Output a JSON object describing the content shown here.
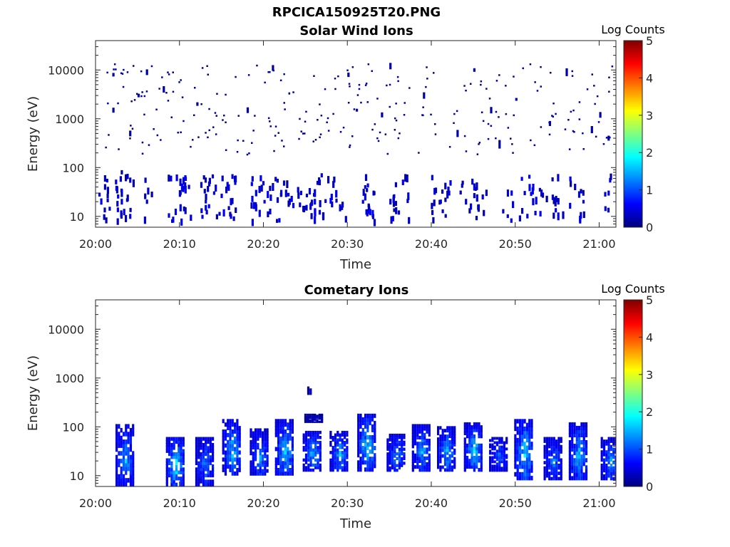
{
  "figure_title": "RPCICA150925T20.PNG",
  "colormap_stops": [
    "#00007f",
    "#0000ff",
    "#0080ff",
    "#00ffff",
    "#80ff80",
    "#ffff00",
    "#ff8000",
    "#ff0000",
    "#7f0000"
  ],
  "chart_data": [
    {
      "type": "heatmap",
      "title": "Solar Wind Ions",
      "xlabel": "Time",
      "ylabel": "Energy (eV)",
      "xlim": [
        "20:00",
        "21:02"
      ],
      "ylim": [
        6,
        40000
      ],
      "y_scale": "log",
      "x_ticks": [
        "20:00",
        "20:10",
        "20:20",
        "20:30",
        "20:40",
        "20:50",
        "21:00"
      ],
      "y_ticks": [
        "10",
        "100",
        "1000",
        "10000"
      ],
      "colorbar": {
        "label": "Log Counts",
        "range": [
          0,
          5
        ],
        "ticks": [
          "0",
          "1",
          "2",
          "3",
          "4",
          "5"
        ]
      },
      "points": [
        {
          "t": "20:01",
          "e": 40,
          "c": 0.3
        },
        {
          "t": "20:01",
          "e": 60,
          "c": 0.3
        },
        {
          "t": "20:02",
          "e": 1500,
          "c": 0.2
        },
        {
          "t": "20:02",
          "e": 8000,
          "c": 0.2
        },
        {
          "t": "20:03",
          "e": 30,
          "c": 0.4
        },
        {
          "t": "20:03",
          "e": 20,
          "c": 0.5
        },
        {
          "t": "20:03",
          "e": 80,
          "c": 0.3
        },
        {
          "t": "20:04",
          "e": 10,
          "c": 0.5
        },
        {
          "t": "20:04",
          "e": 500,
          "c": 0.2
        },
        {
          "t": "20:05",
          "e": 3000,
          "c": 0.2
        },
        {
          "t": "20:06",
          "e": 9000,
          "c": 0.2
        },
        {
          "t": "20:06",
          "e": 20,
          "c": 0.4
        },
        {
          "t": "20:08",
          "e": 4000,
          "c": 0.2
        },
        {
          "t": "20:09",
          "e": 8,
          "c": 0.4
        },
        {
          "t": "20:10",
          "e": 30,
          "c": 0.5
        },
        {
          "t": "20:10",
          "e": 15,
          "c": 0.5
        },
        {
          "t": "20:11",
          "e": 40,
          "c": 0.4
        },
        {
          "t": "20:12",
          "e": 2000,
          "c": 0.2
        },
        {
          "t": "20:13",
          "e": 20,
          "c": 0.5
        },
        {
          "t": "20:13",
          "e": 15,
          "c": 0.6
        },
        {
          "t": "20:14",
          "e": 30,
          "c": 0.5
        },
        {
          "t": "20:15",
          "e": 60,
          "c": 0.3
        },
        {
          "t": "20:16",
          "e": 20,
          "c": 0.5
        },
        {
          "t": "20:16",
          "e": 10,
          "c": 0.5
        },
        {
          "t": "20:18",
          "e": 1500,
          "c": 0.2
        },
        {
          "t": "20:19",
          "e": 30,
          "c": 0.5
        },
        {
          "t": "20:19",
          "e": 15,
          "c": 0.5
        },
        {
          "t": "20:20",
          "e": 20,
          "c": 0.5
        },
        {
          "t": "20:21",
          "e": 11000,
          "c": 0.2
        },
        {
          "t": "20:21",
          "e": 40,
          "c": 0.4
        },
        {
          "t": "20:22",
          "e": 30,
          "c": 0.6
        },
        {
          "t": "20:23",
          "e": 20,
          "c": 0.5
        },
        {
          "t": "20:24",
          "e": 35,
          "c": 0.4
        },
        {
          "t": "20:25",
          "e": 15,
          "c": 0.5
        },
        {
          "t": "20:26",
          "e": 30,
          "c": 0.5
        },
        {
          "t": "20:26",
          "e": 20,
          "c": 0.6
        },
        {
          "t": "20:27",
          "e": 10,
          "c": 0.5
        },
        {
          "t": "20:28",
          "e": 25,
          "c": 0.5
        },
        {
          "t": "20:29",
          "e": 15,
          "c": 0.5
        },
        {
          "t": "20:30",
          "e": 8000,
          "c": 0.2
        },
        {
          "t": "20:31",
          "e": 1500,
          "c": 0.2
        },
        {
          "t": "20:32",
          "e": 40,
          "c": 0.4
        },
        {
          "t": "20:32",
          "e": 25,
          "c": 0.5
        },
        {
          "t": "20:33",
          "e": 30,
          "c": 0.4
        },
        {
          "t": "20:34",
          "e": 1200,
          "c": 0.2
        },
        {
          "t": "20:35",
          "e": 20,
          "c": 0.5
        },
        {
          "t": "20:35",
          "e": 12000,
          "c": 0.2
        },
        {
          "t": "20:36",
          "e": 12,
          "c": 0.4
        },
        {
          "t": "20:37",
          "e": 60,
          "c": 0.3
        },
        {
          "t": "20:39",
          "e": 3000,
          "c": 0.2
        },
        {
          "t": "20:40",
          "e": 12,
          "c": 0.4
        },
        {
          "t": "20:41",
          "e": 20,
          "c": 0.5
        },
        {
          "t": "20:42",
          "e": 30,
          "c": 0.5
        },
        {
          "t": "20:43",
          "e": 500,
          "c": 0.2
        },
        {
          "t": "20:44",
          "e": 20,
          "c": 0.4
        },
        {
          "t": "20:45",
          "e": 40,
          "c": 0.5
        },
        {
          "t": "20:45",
          "e": 10000,
          "c": 0.2
        },
        {
          "t": "20:46",
          "e": 25,
          "c": 0.5
        },
        {
          "t": "20:47",
          "e": 1500,
          "c": 0.2
        },
        {
          "t": "20:48",
          "e": 300,
          "c": 0.2
        },
        {
          "t": "20:49",
          "e": 30,
          "c": 0.4
        },
        {
          "t": "20:50",
          "e": 2500,
          "c": 0.2
        },
        {
          "t": "20:51",
          "e": 30,
          "c": 0.4
        },
        {
          "t": "20:52",
          "e": 20,
          "c": 0.4
        },
        {
          "t": "20:53",
          "e": 30,
          "c": 0.4
        },
        {
          "t": "20:54",
          "e": 800,
          "c": 0.2
        },
        {
          "t": "20:55",
          "e": 20,
          "c": 0.5
        },
        {
          "t": "20:55",
          "e": 10,
          "c": 0.5
        },
        {
          "t": "20:56",
          "e": 9000,
          "c": 0.2
        },
        {
          "t": "20:57",
          "e": 40,
          "c": 0.4
        },
        {
          "t": "20:58",
          "e": 20,
          "c": 0.5
        },
        {
          "t": "20:59",
          "e": 600,
          "c": 0.2
        },
        {
          "t": "21:00",
          "e": 1200,
          "c": 0.2
        },
        {
          "t": "21:01",
          "e": 30,
          "c": 0.4
        },
        {
          "t": "21:01",
          "e": 400,
          "c": 0.2
        }
      ]
    },
    {
      "type": "heatmap",
      "title": "Cometary Ions",
      "xlabel": "Time",
      "ylabel": "Energy (eV)",
      "xlim": [
        "20:00",
        "21:02"
      ],
      "ylim": [
        6,
        40000
      ],
      "y_scale": "log",
      "x_ticks": [
        "20:00",
        "20:10",
        "20:20",
        "20:30",
        "20:40",
        "20:50",
        "21:00"
      ],
      "y_ticks": [
        "10",
        "100",
        "1000",
        "10000"
      ],
      "colorbar": {
        "label": "Log Counts",
        "range": [
          0,
          5
        ],
        "ticks": [
          "0",
          "1",
          "2",
          "3",
          "4",
          "5"
        ]
      },
      "bursts": [
        {
          "t": "20:03.5",
          "e_min": 6,
          "e_max": 110,
          "peak": 1.5
        },
        {
          "t": "20:09.5",
          "e_min": 6,
          "e_max": 60,
          "peak": 1.8
        },
        {
          "t": "20:13.0",
          "e_min": 6,
          "e_max": 60,
          "peak": 1.3
        },
        {
          "t": "20:16.2",
          "e_min": 10,
          "e_max": 140,
          "peak": 1.6
        },
        {
          "t": "20:19.5",
          "e_min": 10,
          "e_max": 90,
          "peak": 1.4
        },
        {
          "t": "20:22.5",
          "e_min": 10,
          "e_max": 140,
          "peak": 1.7
        },
        {
          "t": "20:25.8",
          "e_min": 12,
          "e_max": 80,
          "peak": 1.6
        },
        {
          "t": "20:29.0",
          "e_min": 12,
          "e_max": 80,
          "peak": 1.5
        },
        {
          "t": "20:32.3",
          "e_min": 12,
          "e_max": 180,
          "peak": 1.8
        },
        {
          "t": "20:35.8",
          "e_min": 12,
          "e_max": 70,
          "peak": 1.4
        },
        {
          "t": "20:38.8",
          "e_min": 12,
          "e_max": 110,
          "peak": 1.5
        },
        {
          "t": "20:41.8",
          "e_min": 12,
          "e_max": 100,
          "peak": 1.5
        },
        {
          "t": "20:45.0",
          "e_min": 12,
          "e_max": 120,
          "peak": 1.7
        },
        {
          "t": "20:48.0",
          "e_min": 12,
          "e_max": 60,
          "peak": 1.2
        },
        {
          "t": "20:51.0",
          "e_min": 8,
          "e_max": 140,
          "peak": 1.8
        },
        {
          "t": "20:54.5",
          "e_min": 8,
          "e_max": 60,
          "peak": 1.3
        },
        {
          "t": "20:57.5",
          "e_min": 8,
          "e_max": 120,
          "peak": 1.6
        },
        {
          "t": "21:01.3",
          "e_min": 8,
          "e_max": 60,
          "peak": 1.4
        },
        {
          "t": "20:25.5",
          "e_min": 450,
          "e_max": 650,
          "peak": 0.4
        },
        {
          "t": "20:26.0",
          "e_min": 120,
          "e_max": 180,
          "peak": 0.4
        }
      ]
    }
  ]
}
